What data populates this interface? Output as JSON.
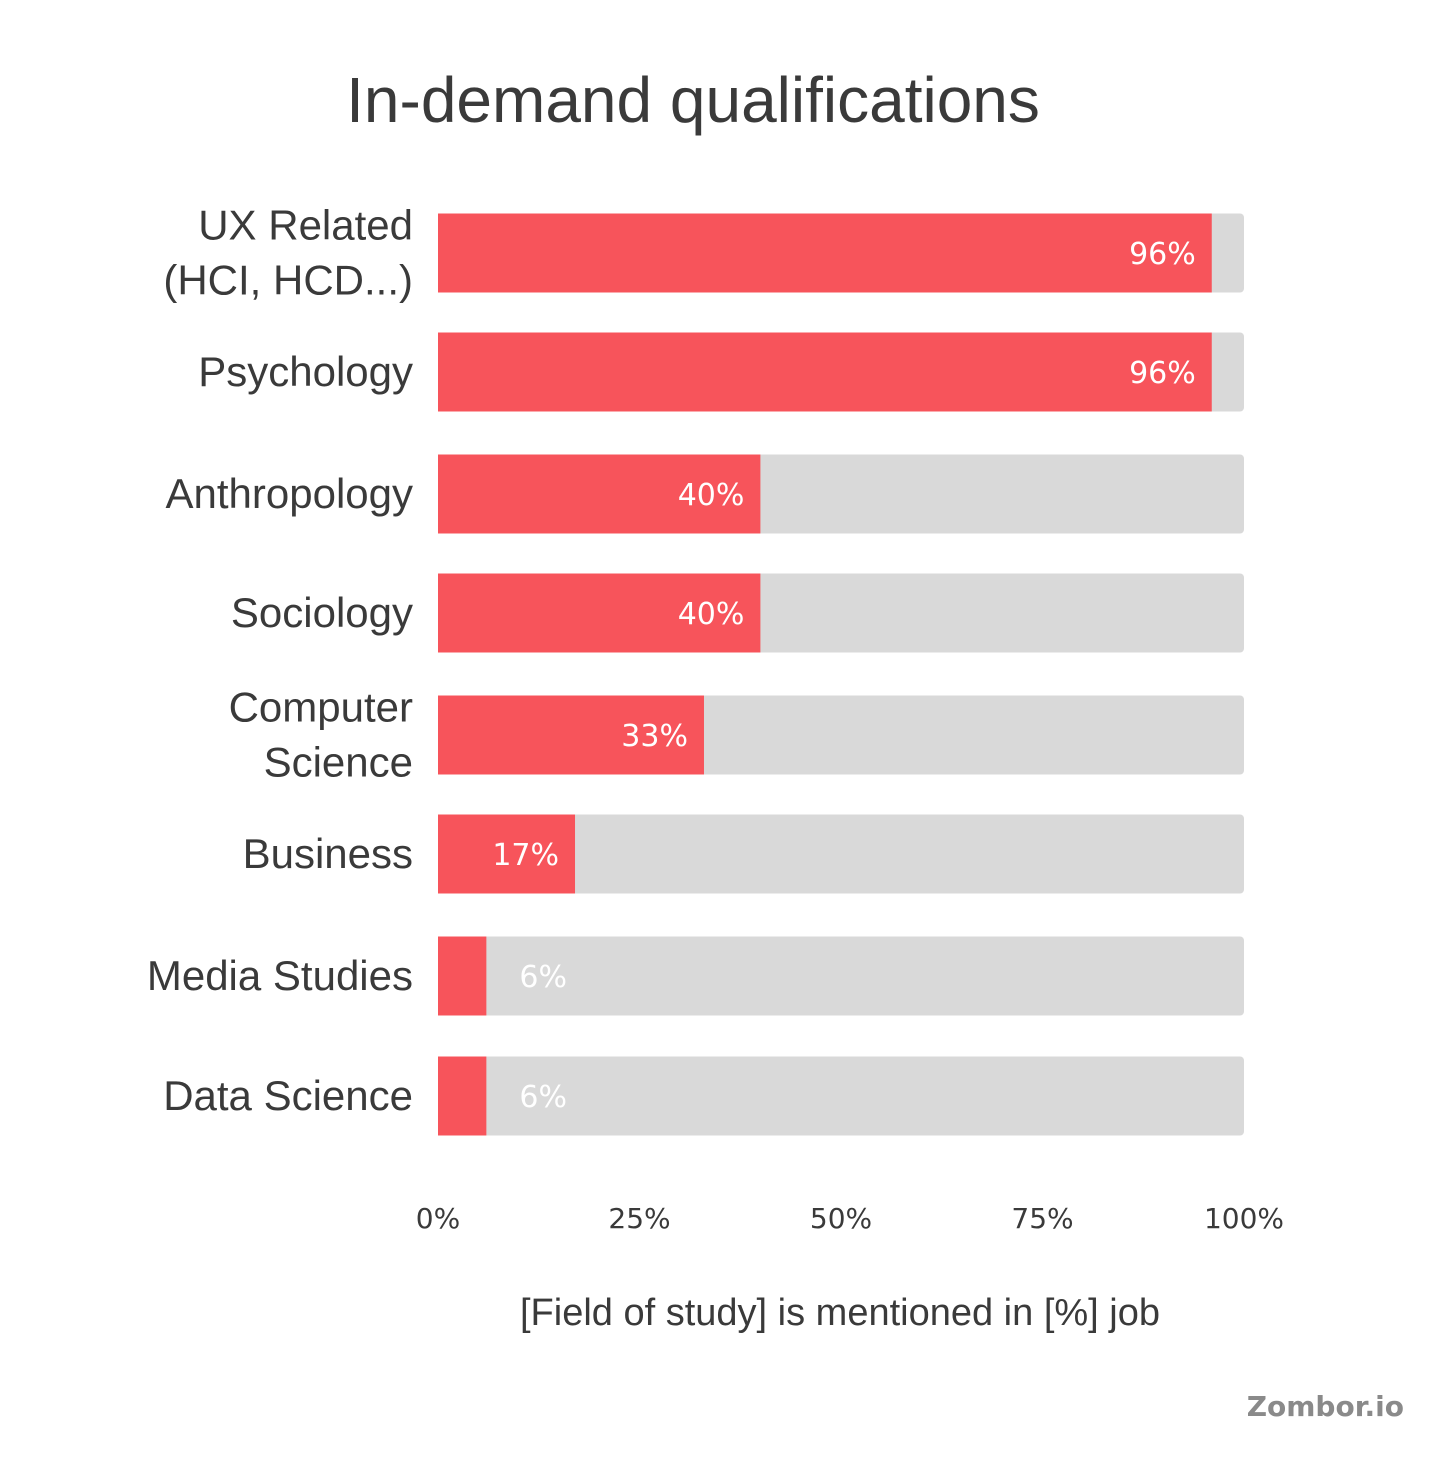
{
  "chart_data": {
    "type": "bar",
    "orientation": "horizontal",
    "title": "In-demand qualifications",
    "xlabel": "[Field of study] is mentioned in [%] job",
    "ylabel": "",
    "categories": [
      [
        "UX Related",
        "(HCI, HCD...)"
      ],
      [
        "Psychology"
      ],
      [
        "Anthropology"
      ],
      [
        "Sociology"
      ],
      [
        "Computer",
        "Science"
      ],
      [
        "Business"
      ],
      [
        "Media Studies"
      ],
      [
        "Data Science"
      ]
    ],
    "values": [
      96,
      96,
      40,
      40,
      33,
      17,
      6,
      6
    ],
    "value_labels": [
      "96%",
      "96%",
      "40%",
      "40%",
      "33%",
      "17%",
      "6%",
      "6%"
    ],
    "xlim": [
      0,
      100
    ],
    "xticks": [
      0,
      25,
      50,
      75,
      100
    ],
    "xtick_labels": [
      "0%",
      "25%",
      "50%",
      "75%",
      "100%"
    ],
    "grid": false,
    "legend": "none"
  },
  "colors": {
    "bar_fill": "#f7545b",
    "bar_track": "#d9d9d9",
    "text": "#3a3a3a",
    "value_text": "#ffffff",
    "brand_text": "#8a8a8a"
  },
  "footer": {
    "brand": "Zombor.io"
  }
}
